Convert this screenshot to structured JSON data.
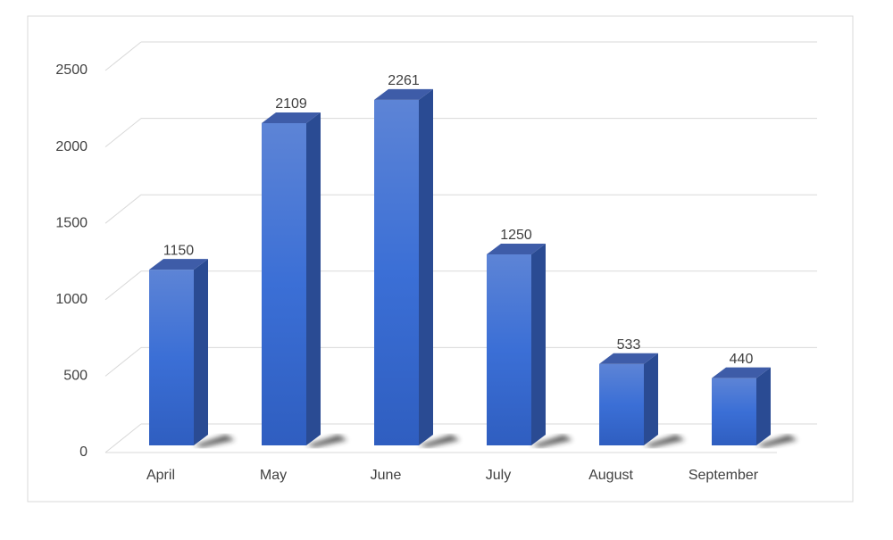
{
  "chart_data": {
    "type": "bar3d",
    "categories": [
      "April",
      "May",
      "June",
      "July",
      "August",
      "September"
    ],
    "values": [
      1150,
      2109,
      2261,
      1250,
      533,
      440
    ],
    "color": "#3a6fd8",
    "ylim": [
      0,
      2500
    ],
    "yticks": [
      0,
      500,
      1000,
      1500,
      2000,
      2500
    ],
    "grid": true
  }
}
